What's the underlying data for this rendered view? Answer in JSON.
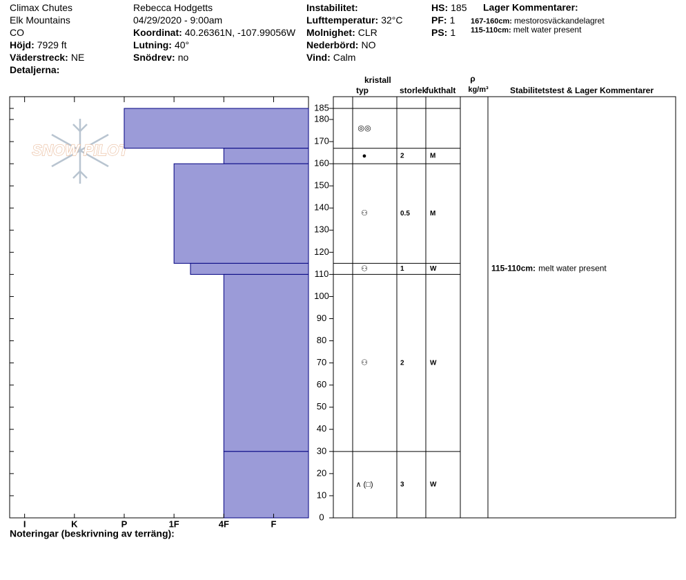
{
  "header": {
    "col1": [
      {
        "text": "Climax Chutes"
      },
      {
        "text": "Elk Mountains"
      },
      {
        "text": "CO"
      },
      {
        "label": "Höjd:",
        "value": "7929 ft"
      },
      {
        "label": "Väderstreck:",
        "value": "NE"
      },
      {
        "label": "Detaljerna:"
      }
    ],
    "col2": [
      {
        "text": "Rebecca Hodgetts"
      },
      {
        "text": "04/29/2020 - 9:00am"
      },
      {
        "label": "Koordinat:",
        "value": "40.26361N, -107.99056W"
      },
      {
        "label": "Lutning:",
        "value": "40°"
      },
      {
        "label": "Snödrev:",
        "value": "no"
      }
    ],
    "col3": [
      {
        "label": "Instabilitet:"
      },
      {
        "label": "Lufttemperatur:",
        "value": "32°C"
      },
      {
        "label": "Molnighet:",
        "value": "CLR"
      },
      {
        "label": "Nederbörd:",
        "value": "NO"
      },
      {
        "label": "Vind:",
        "value": "Calm"
      }
    ],
    "col4": [
      {
        "label": "HS:",
        "value": 185
      },
      {
        "label": "PF:",
        "value": 1
      },
      {
        "label": "PS:",
        "value": 1
      }
    ],
    "comments_title": "Lager Kommentarer:",
    "comments": [
      {
        "label": "167-160cm:",
        "value": "mestorosväckandelagret"
      },
      {
        "label": "115-110cm:",
        "value": "melt water present"
      }
    ]
  },
  "logo": "SNOW PILOT",
  "table_header": {
    "crystal": "kristall",
    "type": "typ",
    "size": "storlek",
    "moisture": "fukthalt",
    "rho": "ρ",
    "density_unit": "kg/m³",
    "comments": "Stabilitetstest & Lager Kommentarer"
  },
  "chart_data": {
    "type": "snow-profile",
    "color": "#9b9bd8",
    "edge_color": "#000080",
    "ylim": [
      0,
      185
    ],
    "yticks": [
      0,
      10,
      20,
      30,
      40,
      50,
      60,
      70,
      80,
      90,
      100,
      110,
      120,
      130,
      140,
      150,
      160,
      170,
      180,
      185
    ],
    "xlim": [
      6.3,
      0.3
    ],
    "xticks": [
      {
        "value": 6,
        "label": "I"
      },
      {
        "value": 5,
        "label": "K"
      },
      {
        "value": 4,
        "label": "P"
      },
      {
        "value": 3,
        "label": "1F"
      },
      {
        "value": 2,
        "label": "4F"
      },
      {
        "value": 1,
        "label": "F"
      }
    ],
    "layers": [
      {
        "top": 185,
        "bottom": 167,
        "hardness": 4,
        "grain": "◎◎"
      },
      {
        "top": 167,
        "bottom": 160,
        "hardness": 2,
        "grain": "●",
        "size": 2,
        "moisture": "M"
      },
      {
        "top": 160,
        "bottom": 115,
        "hardness": 3,
        "grain": "⚇",
        "size": 0.5,
        "moisture": "M"
      },
      {
        "top": 115,
        "bottom": 110,
        "hardness": 2.67,
        "grain": "⚇",
        "size": 1,
        "moisture": "W",
        "comment": {
          "label": "115-110cm:",
          "value": "melt water present"
        }
      },
      {
        "top": 110,
        "bottom": 30,
        "hardness": 2,
        "grain": "⚇",
        "size": 2,
        "moisture": "W"
      },
      {
        "top": 30,
        "bottom": 0,
        "hardness": 2,
        "grain": "∧ (□)",
        "size": 3,
        "moisture": "W"
      }
    ]
  },
  "notes_label": "Noteringar (beskrivning av terräng):"
}
